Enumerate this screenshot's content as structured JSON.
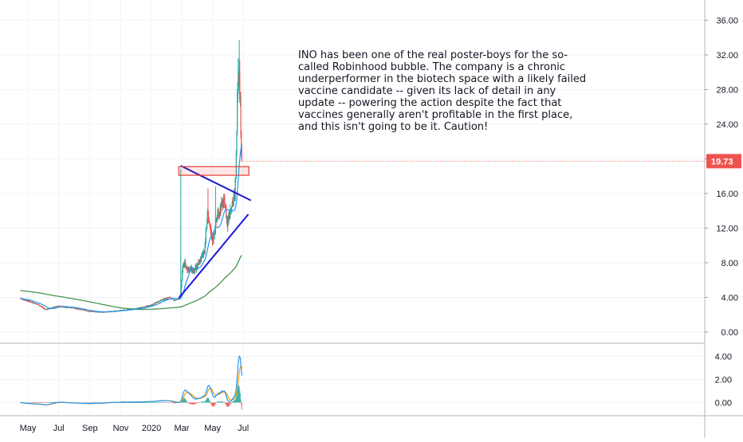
{
  "annotation": {
    "lines": [
      "INO has been one of the real poster-boys for the so-",
      "called Robinhood bubble. The company is a chronic",
      "underperformer in the biotech space with a likely failed",
      "vaccine candidate -- given its lack of detail in any",
      "update -- powering the action despite the fact that",
      "vaccines generally aren't profitable in the first place,",
      "and this isn't going to be it. Caution!"
    ]
  },
  "last_price_label": "19.73",
  "colors": {
    "up": "#26a69a",
    "down": "#ef5350",
    "ma_fast": "#2196f3",
    "ma_slow": "#388e3c",
    "macd": "#2196f3",
    "signal": "#ff9800",
    "trendline": "#1c16d8",
    "box": "#e53935",
    "price_badge": "#ef5350",
    "grid": "#f0f3fa"
  },
  "chart_data": [
    {
      "type": "candlestick",
      "panel": "price",
      "y_axis_ticks": [
        "36.00",
        "32.00",
        "28.00",
        "24.00",
        "20.00",
        "16.00",
        "12.00",
        "8.00",
        "4.00",
        "0.00"
      ],
      "ylim": [
        -1.2,
        37.6
      ],
      "x_axis_ticks": [
        "May",
        "Jul",
        "Sep",
        "Nov",
        "2020",
        "Mar",
        "May",
        "Jul"
      ],
      "x_tick_days": [
        0,
        61,
        123,
        184,
        245,
        305,
        366,
        427
      ],
      "x_origin_date": "2019-05-01",
      "close_anchor_points": [
        [
          -15,
          3.9
        ],
        [
          0,
          3.6
        ],
        [
          20,
          3.2
        ],
        [
          35,
          2.6
        ],
        [
          61,
          3.0
        ],
        [
          90,
          2.8
        ],
        [
          123,
          2.4
        ],
        [
          150,
          2.3
        ],
        [
          184,
          2.5
        ],
        [
          215,
          2.7
        ],
        [
          245,
          3.1
        ],
        [
          260,
          3.6
        ],
        [
          270,
          3.8
        ],
        [
          280,
          4.0
        ],
        [
          290,
          3.7
        ],
        [
          300,
          3.9
        ],
        [
          303,
          4.4
        ],
        [
          305,
          6.0
        ],
        [
          308,
          8.0
        ],
        [
          313,
          7.5
        ],
        [
          320,
          7.3
        ],
        [
          330,
          7.0
        ],
        [
          340,
          8.0
        ],
        [
          350,
          9.5
        ],
        [
          357,
          14.0
        ],
        [
          360,
          12.0
        ],
        [
          366,
          10.5
        ],
        [
          372,
          12.5
        ],
        [
          376,
          13.5
        ],
        [
          383,
          14.5
        ],
        [
          390,
          15.0
        ],
        [
          395,
          12.5
        ],
        [
          400,
          14.0
        ],
        [
          405,
          15.0
        ],
        [
          410,
          15.5
        ],
        [
          413,
          20.0
        ],
        [
          415,
          28.0
        ],
        [
          417,
          31.0
        ],
        [
          420,
          28.0
        ],
        [
          422,
          24.0
        ],
        [
          424,
          19.73
        ]
      ],
      "spike_events": [
        {
          "day": 303,
          "high": 18.8
        },
        {
          "day": 357,
          "high": 16.6
        },
        {
          "day": 372,
          "high": 16.8
        },
        {
          "day": 419,
          "high": 33.7
        }
      ],
      "last_close": 19.73,
      "overlays": [
        {
          "kind": "moving_average",
          "color": "blue",
          "period_days": 20
        },
        {
          "kind": "moving_average",
          "color": "green",
          "period_days": 200
        },
        {
          "kind": "trendline",
          "from": [
            303,
            19.2
          ],
          "to": [
            442,
            15.2
          ]
        },
        {
          "kind": "trendline",
          "from": [
            299,
            3.9
          ],
          "to": [
            437,
            13.6
          ]
        },
        {
          "kind": "rectangle",
          "x_range": [
            299,
            438
          ],
          "y_range": [
            18.1,
            19.1
          ]
        }
      ]
    },
    {
      "type": "macd",
      "panel": "indicator",
      "y_axis_ticks": [
        "4.00",
        "2.00",
        "0.00"
      ],
      "ylim": [
        -1.0,
        5.0
      ],
      "series": [
        {
          "kind": "macd_line",
          "color": "blue"
        },
        {
          "kind": "signal_line",
          "color": "orange"
        },
        {
          "kind": "histogram"
        }
      ],
      "peak_points": [
        {
          "day": 313,
          "value": 1.6
        },
        {
          "day": 358,
          "value": 1.9
        },
        {
          "day": 383,
          "value": 1.5
        },
        {
          "day": 420,
          "value": 4.2
        }
      ]
    }
  ]
}
